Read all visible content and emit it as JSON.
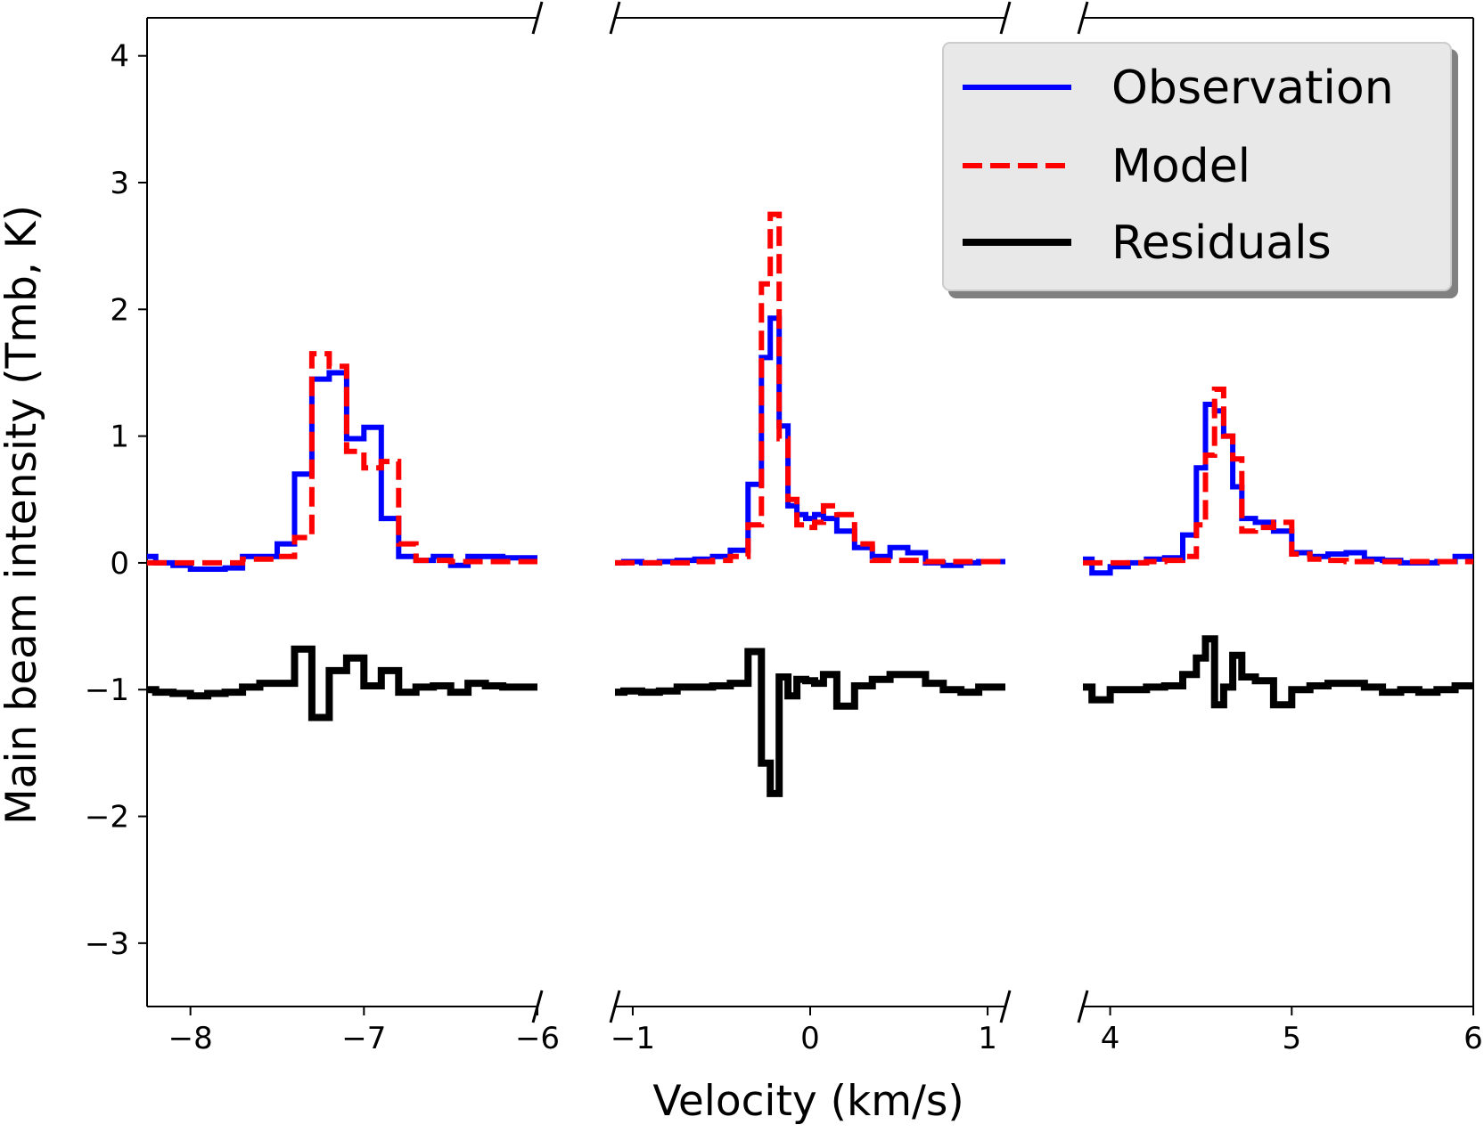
{
  "chart_data": {
    "type": "line",
    "subtype": "step",
    "title": "",
    "xlabel": "Velocity (km/s)",
    "ylabel": "Main beam intensity (Tmb, K)",
    "ylim": [
      -3.5,
      4.3
    ],
    "yticks": [
      {
        "value": 4,
        "label": "4"
      },
      {
        "value": 3,
        "label": "3"
      },
      {
        "value": 2,
        "label": "2"
      },
      {
        "value": 1,
        "label": "1"
      },
      {
        "value": 0,
        "label": "0"
      },
      {
        "value": -1,
        "label": "−1"
      },
      {
        "value": -2,
        "label": "−2"
      },
      {
        "value": -3,
        "label": "−3"
      }
    ],
    "grid": false,
    "broken_x_axis": true,
    "legend": {
      "position": "top-right",
      "entries": [
        {
          "label": "Observation",
          "color": "#0000ff",
          "style": "solid"
        },
        {
          "label": "Model",
          "color": "#ff0000",
          "style": "dashed"
        },
        {
          "label": "Residuals",
          "color": "#000000",
          "style": "solid"
        }
      ]
    },
    "panels": [
      {
        "xlim": [
          -8.25,
          -6.0
        ],
        "xticks": [
          {
            "value": -8,
            "label": "−8"
          },
          {
            "value": -7,
            "label": "−7"
          },
          {
            "value": -6,
            "label": "−6"
          }
        ],
        "series": [
          {
            "name": "Observation",
            "color": "#0000ff",
            "x": [
              -8.25,
              -8.15,
              -8.05,
              -7.95,
              -7.85,
              -7.75,
              -7.65,
              -7.55,
              -7.45,
              -7.35,
              -7.25,
              -7.15,
              -7.05,
              -6.95,
              -6.85,
              -6.75,
              -6.65,
              -6.55,
              -6.45,
              -6.35,
              -6.25,
              -6.15
            ],
            "y": [
              0.05,
              0.0,
              -0.02,
              -0.05,
              -0.05,
              -0.04,
              0.05,
              0.05,
              0.15,
              0.7,
              1.45,
              1.5,
              0.98,
              1.07,
              0.35,
              0.05,
              0.02,
              0.05,
              -0.02,
              0.05,
              0.05,
              0.04
            ]
          },
          {
            "name": "Model",
            "color": "#ff0000",
            "x": [
              -8.25,
              -8.15,
              -8.05,
              -7.95,
              -7.85,
              -7.75,
              -7.65,
              -7.55,
              -7.45,
              -7.35,
              -7.25,
              -7.15,
              -7.05,
              -6.95,
              -6.85,
              -6.75,
              -6.65,
              -6.55,
              -6.45,
              -6.35,
              -6.25,
              -6.15
            ],
            "y": [
              0.0,
              0.0,
              0.0,
              0.0,
              0.0,
              0.0,
              0.03,
              0.03,
              0.05,
              0.2,
              1.65,
              1.55,
              0.88,
              0.75,
              0.8,
              0.15,
              0.02,
              0.02,
              0.01,
              0.01,
              0.01,
              0.01
            ]
          },
          {
            "name": "Residuals",
            "color": "#000000",
            "x": [
              -8.25,
              -8.15,
              -8.05,
              -7.95,
              -7.85,
              -7.75,
              -7.65,
              -7.55,
              -7.45,
              -7.35,
              -7.25,
              -7.15,
              -7.05,
              -6.95,
              -6.85,
              -6.75,
              -6.65,
              -6.55,
              -6.45,
              -6.35,
              -6.25,
              -6.15
            ],
            "y": [
              -1.0,
              -1.02,
              -1.03,
              -1.05,
              -1.03,
              -1.02,
              -0.98,
              -0.95,
              -0.95,
              -0.68,
              -1.22,
              -0.85,
              -0.75,
              -0.97,
              -0.85,
              -1.02,
              -0.98,
              -0.97,
              -1.02,
              -0.95,
              -0.97,
              -0.98
            ]
          }
        ]
      },
      {
        "xlim": [
          -1.1,
          1.1
        ],
        "xticks": [
          {
            "value": -1,
            "label": "−1"
          },
          {
            "value": 0,
            "label": "0"
          },
          {
            "value": 1,
            "label": "1"
          }
        ],
        "series": [
          {
            "name": "Observation",
            "color": "#0000ff",
            "x": [
              -1.1,
              -1.0,
              -0.9,
              -0.8,
              -0.7,
              -0.6,
              -0.5,
              -0.4,
              -0.3,
              -0.25,
              -0.2,
              -0.15,
              -0.1,
              -0.05,
              0.0,
              0.05,
              0.1,
              0.2,
              0.3,
              0.4,
              0.5,
              0.6,
              0.7,
              0.8,
              0.9,
              1.0
            ],
            "y": [
              0.0,
              0.01,
              0.0,
              0.01,
              0.02,
              0.03,
              0.05,
              0.1,
              0.62,
              1.62,
              1.93,
              1.08,
              0.45,
              0.38,
              0.35,
              0.38,
              0.35,
              0.25,
              0.12,
              0.05,
              0.12,
              0.08,
              0.0,
              -0.02,
              0.0,
              0.01
            ]
          },
          {
            "name": "Model",
            "color": "#ff0000",
            "x": [
              -1.1,
              -1.0,
              -0.9,
              -0.8,
              -0.7,
              -0.6,
              -0.5,
              -0.4,
              -0.3,
              -0.25,
              -0.2,
              -0.15,
              -0.1,
              -0.05,
              0.0,
              0.05,
              0.1,
              0.2,
              0.3,
              0.4,
              0.5,
              0.6,
              0.7,
              0.8,
              0.9,
              1.0
            ],
            "y": [
              0.0,
              0.0,
              0.0,
              0.0,
              0.0,
              0.01,
              0.02,
              0.05,
              0.3,
              2.2,
              2.75,
              0.98,
              0.5,
              0.3,
              0.28,
              0.32,
              0.45,
              0.38,
              0.15,
              0.02,
              0.02,
              0.02,
              0.01,
              0.01,
              0.01,
              0.01
            ]
          },
          {
            "name": "Residuals",
            "color": "#000000",
            "x": [
              -1.1,
              -1.0,
              -0.9,
              -0.8,
              -0.7,
              -0.6,
              -0.5,
              -0.4,
              -0.3,
              -0.25,
              -0.2,
              -0.15,
              -0.1,
              -0.05,
              0.0,
              0.05,
              0.1,
              0.2,
              0.3,
              0.4,
              0.5,
              0.6,
              0.7,
              0.8,
              0.9,
              1.0
            ],
            "y": [
              -1.02,
              -1.01,
              -1.02,
              -1.01,
              -0.98,
              -0.98,
              -0.97,
              -0.95,
              -0.7,
              -1.58,
              -1.82,
              -0.9,
              -1.05,
              -0.92,
              -0.93,
              -0.95,
              -0.88,
              -1.13,
              -0.97,
              -0.92,
              -0.88,
              -0.88,
              -0.95,
              -1.0,
              -1.02,
              -0.98
            ]
          }
        ]
      },
      {
        "xlim": [
          3.85,
          6.0
        ],
        "xticks": [
          {
            "value": 4,
            "label": "4"
          },
          {
            "value": 5,
            "label": "5"
          },
          {
            "value": 6,
            "label": "6"
          }
        ],
        "series": [
          {
            "name": "Observation",
            "color": "#0000ff",
            "x": [
              3.85,
              3.95,
              4.05,
              4.15,
              4.25,
              4.35,
              4.45,
              4.5,
              4.55,
              4.6,
              4.65,
              4.7,
              4.75,
              4.85,
              4.95,
              5.05,
              5.15,
              5.25,
              5.35,
              5.45,
              5.55,
              5.65,
              5.75,
              5.85,
              5.95
            ],
            "y": [
              0.03,
              -0.08,
              -0.03,
              0.0,
              0.03,
              0.04,
              0.22,
              0.75,
              1.25,
              1.2,
              1.0,
              0.6,
              0.35,
              0.32,
              0.25,
              0.08,
              0.05,
              0.07,
              0.08,
              0.03,
              0.02,
              0.0,
              0.0,
              0.01,
              0.05
            ]
          },
          {
            "name": "Model",
            "color": "#ff0000",
            "x": [
              3.85,
              3.95,
              4.05,
              4.15,
              4.25,
              4.35,
              4.45,
              4.5,
              4.55,
              4.6,
              4.65,
              4.7,
              4.75,
              4.85,
              4.95,
              5.05,
              5.15,
              5.25,
              5.35,
              5.45,
              5.55,
              5.65,
              5.75,
              5.85,
              5.95
            ],
            "y": [
              0.0,
              0.0,
              0.0,
              0.0,
              0.01,
              0.02,
              0.05,
              0.3,
              0.85,
              1.37,
              1.0,
              0.82,
              0.25,
              0.28,
              0.32,
              0.07,
              0.03,
              0.02,
              0.01,
              0.01,
              0.01,
              0.01,
              0.01,
              0.01,
              0.01
            ]
          },
          {
            "name": "Residuals",
            "color": "#000000",
            "x": [
              3.85,
              3.95,
              4.05,
              4.15,
              4.25,
              4.35,
              4.45,
              4.5,
              4.55,
              4.6,
              4.65,
              4.7,
              4.75,
              4.85,
              4.95,
              5.05,
              5.15,
              5.25,
              5.35,
              5.45,
              5.55,
              5.65,
              5.75,
              5.85,
              5.95
            ],
            "y": [
              -0.98,
              -1.08,
              -1.0,
              -1.0,
              -0.98,
              -0.97,
              -0.88,
              -0.75,
              -0.6,
              -1.12,
              -0.98,
              -0.73,
              -0.9,
              -0.93,
              -1.12,
              -1.0,
              -0.97,
              -0.95,
              -0.95,
              -0.98,
              -1.02,
              -1.0,
              -1.02,
              -1.0,
              -0.97
            ]
          }
        ]
      }
    ]
  }
}
